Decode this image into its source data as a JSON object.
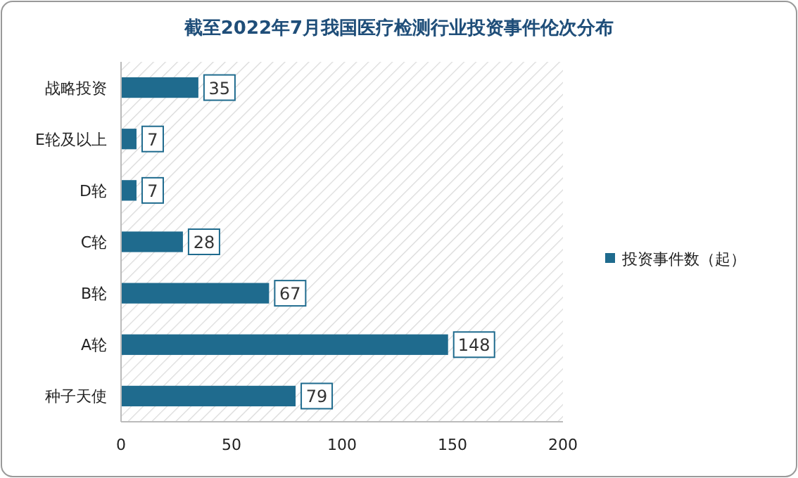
{
  "chart_data": {
    "type": "bar",
    "orientation": "horizontal",
    "title": "截至2022年7月我国医疗检测行业投资事件伦次分布",
    "categories": [
      "战略投资",
      "E轮及以上",
      "D轮",
      "C轮",
      "B轮",
      "A轮",
      "种子天使"
    ],
    "series": [
      {
        "name": "投资事件数（起）",
        "color": "#1f6b8e",
        "values": [
          35,
          7,
          7,
          28,
          67,
          148,
          79
        ]
      }
    ],
    "xlim": [
      0,
      200
    ],
    "xticks": [
      0,
      50,
      100,
      150,
      200
    ],
    "data_labels": true,
    "legend": "right",
    "grid": false
  }
}
